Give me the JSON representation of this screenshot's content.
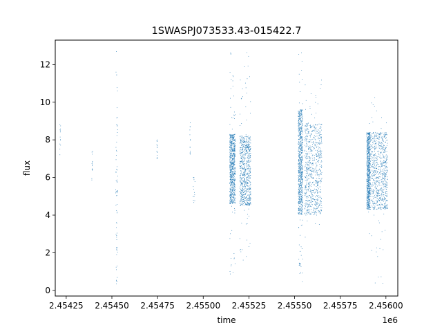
{
  "chart_data": {
    "type": "scatter",
    "title": "1SWASPJ073533.43-015422.7",
    "xlabel": "time",
    "ylabel": "flux",
    "x_offset_label": "1e6",
    "xlim": [
      2454190,
      2456065
    ],
    "ylim": [
      -0.3,
      13.3
    ],
    "x_ticks": [
      2454250,
      2454500,
      2454750,
      2455000,
      2455250,
      2455500,
      2455750,
      2456000
    ],
    "x_tick_labels": [
      "2.45425",
      "2.45450",
      "2.45475",
      "2.45500",
      "2.45525",
      "2.45550",
      "2.45575",
      "2.45600"
    ],
    "y_ticks": [
      0,
      2,
      4,
      6,
      8,
      10,
      12
    ],
    "y_tick_labels": [
      "0",
      "2",
      "4",
      "6",
      "8",
      "10",
      "12"
    ],
    "grid": false,
    "legend": "none",
    "marker_color": "#1f77b4",
    "series": [
      {
        "segments": [
          {
            "x_range": [
              2454215,
              2454220
            ],
            "y_range": [
              7.2,
              8.9
            ],
            "density": "sparse"
          },
          {
            "x_range": [
              2454390,
              2454395
            ],
            "y_range": [
              5.6,
              7.4
            ],
            "density": "sparse"
          },
          {
            "x_range": [
              2454520,
              2454535
            ],
            "y_range": [
              4.5,
              8.6
            ],
            "density": "sparse"
          },
          {
            "x_range": [
              2454522,
              2454532
            ],
            "y_range": [
              0.3,
              12.8
            ],
            "density": "outliers"
          },
          {
            "x_range": [
              2454745,
              2454750
            ],
            "y_range": [
              7.0,
              8.3
            ],
            "density": "sparse"
          },
          {
            "x_range": [
              2454925,
              2454930
            ],
            "y_range": [
              7.2,
              9.1
            ],
            "density": "sparse"
          },
          {
            "x_range": [
              2454945,
              2454955
            ],
            "y_range": [
              4.6,
              6.2
            ],
            "density": "sparse"
          },
          {
            "x_range": [
              2455145,
              2455175
            ],
            "y_range": [
              4.6,
              8.3
            ],
            "density": "dense"
          },
          {
            "x_range": [
              2455145,
              2455175
            ],
            "y_range": [
              0.8,
              12.7
            ],
            "density": "outliers"
          },
          {
            "x_range": [
              2455200,
              2455260
            ],
            "y_range": [
              4.5,
              8.2
            ],
            "density": "dense"
          },
          {
            "x_range": [
              2455200,
              2455260
            ],
            "y_range": [
              1.2,
              12.8
            ],
            "density": "outliers"
          },
          {
            "x_range": [
              2455520,
              2455545
            ],
            "y_range": [
              4.0,
              9.6
            ],
            "density": "dense"
          },
          {
            "x_range": [
              2455520,
              2455545
            ],
            "y_range": [
              0.3,
              12.7
            ],
            "density": "outliers"
          },
          {
            "x_range": [
              2455525,
              2455530
            ],
            "y_range": [
              1.3,
              1.5
            ],
            "density": "cluster"
          },
          {
            "x_range": [
              2455555,
              2455650
            ],
            "y_range": [
              4.0,
              8.9
            ],
            "density": "dense"
          },
          {
            "x_range": [
              2455555,
              2455650
            ],
            "y_range": [
              2.5,
              11.3
            ],
            "density": "outliers"
          },
          {
            "x_range": [
              2455895,
              2455915
            ],
            "y_range": [
              4.3,
              8.4
            ],
            "density": "dense"
          },
          {
            "x_range": [
              2455920,
              2456010
            ],
            "y_range": [
              4.3,
              8.4
            ],
            "density": "dense"
          },
          {
            "x_range": [
              2455895,
              2456010
            ],
            "y_range": [
              0.3,
              10.3
            ],
            "density": "outliers"
          }
        ]
      }
    ]
  }
}
